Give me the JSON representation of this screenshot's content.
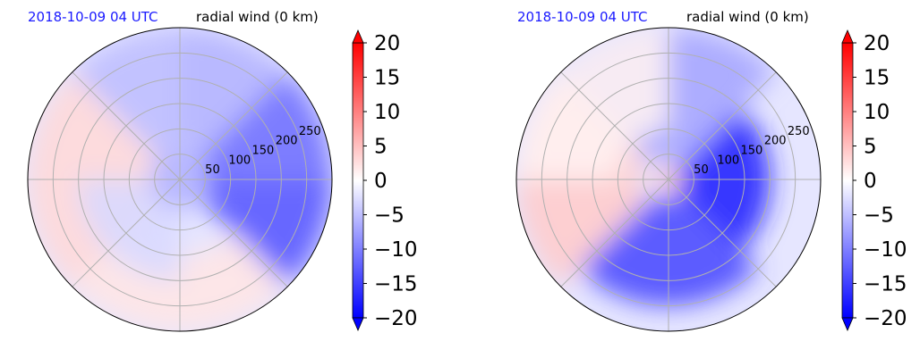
{
  "chart_data": [
    {
      "type": "heatmap",
      "projection": "polar",
      "title_date": "2018-10-09 04 UTC",
      "title_variable": "radial wind (0 km)",
      "radial_ticks": [
        50,
        100,
        150,
        200,
        250
      ],
      "radial_max": 300,
      "angular_spokes_deg": [
        0,
        45,
        90,
        135,
        180,
        225,
        270,
        315
      ],
      "grid": true,
      "colorbar": {
        "ticks": [
          -20,
          -15,
          -10,
          -5,
          0,
          5,
          10,
          15,
          20
        ],
        "tick_labels": [
          "−20",
          "−15",
          "−10",
          "−5",
          "0",
          "5",
          "10",
          "15",
          "20"
        ],
        "range": [
          -20,
          20
        ],
        "extend": "both",
        "cmap": "bwr",
        "color_min": "#0000ff",
        "color_mid": "#ffffff",
        "color_max": "#ff0000"
      },
      "field_regions": [
        {
          "direction": "east",
          "radius": [
            60,
            300
          ],
          "value": -13
        },
        {
          "direction": "northeast",
          "radius": [
            80,
            300
          ],
          "value": -10
        },
        {
          "direction": "north",
          "radius": [
            60,
            300
          ],
          "value": -5
        },
        {
          "direction": "center",
          "radius": [
            0,
            60
          ],
          "value": -6
        },
        {
          "direction": "west",
          "radius": [
            60,
            300
          ],
          "value": 3
        },
        {
          "direction": "south",
          "radius": [
            150,
            300
          ],
          "value": 2
        },
        {
          "direction": "southwest",
          "radius": [
            60,
            200
          ],
          "value": -3
        }
      ]
    },
    {
      "type": "heatmap",
      "projection": "polar",
      "title_date": "2018-10-09 04 UTC",
      "title_variable": "radial wind (0 km)",
      "radial_ticks": [
        50,
        100,
        150,
        200,
        250
      ],
      "radial_max": 300,
      "angular_spokes_deg": [
        0,
        45,
        90,
        135,
        180,
        225,
        270,
        315
      ],
      "grid": true,
      "colorbar": {
        "ticks": [
          -20,
          -15,
          -10,
          -5,
          0,
          5,
          10,
          15,
          20
        ],
        "tick_labels": [
          "−20",
          "−15",
          "−10",
          "−5",
          "0",
          "5",
          "10",
          "15",
          "20"
        ],
        "range": [
          -20,
          20
        ],
        "extend": "both",
        "cmap": "bwr",
        "color_min": "#0000ff",
        "color_mid": "#ffffff",
        "color_max": "#ff0000"
      },
      "field_regions": [
        {
          "direction": "east",
          "radius": [
            20,
            200
          ],
          "value": -17
        },
        {
          "direction": "center",
          "radius": [
            0,
            25
          ],
          "value": 5
        },
        {
          "direction": "north",
          "radius": [
            40,
            300
          ],
          "value": -7
        },
        {
          "direction": "south",
          "radius": [
            40,
            250
          ],
          "value": -14
        },
        {
          "direction": "west",
          "radius": [
            60,
            300
          ],
          "value": 4
        },
        {
          "direction": "northwest",
          "radius": [
            100,
            300
          ],
          "value": 1
        }
      ]
    }
  ]
}
